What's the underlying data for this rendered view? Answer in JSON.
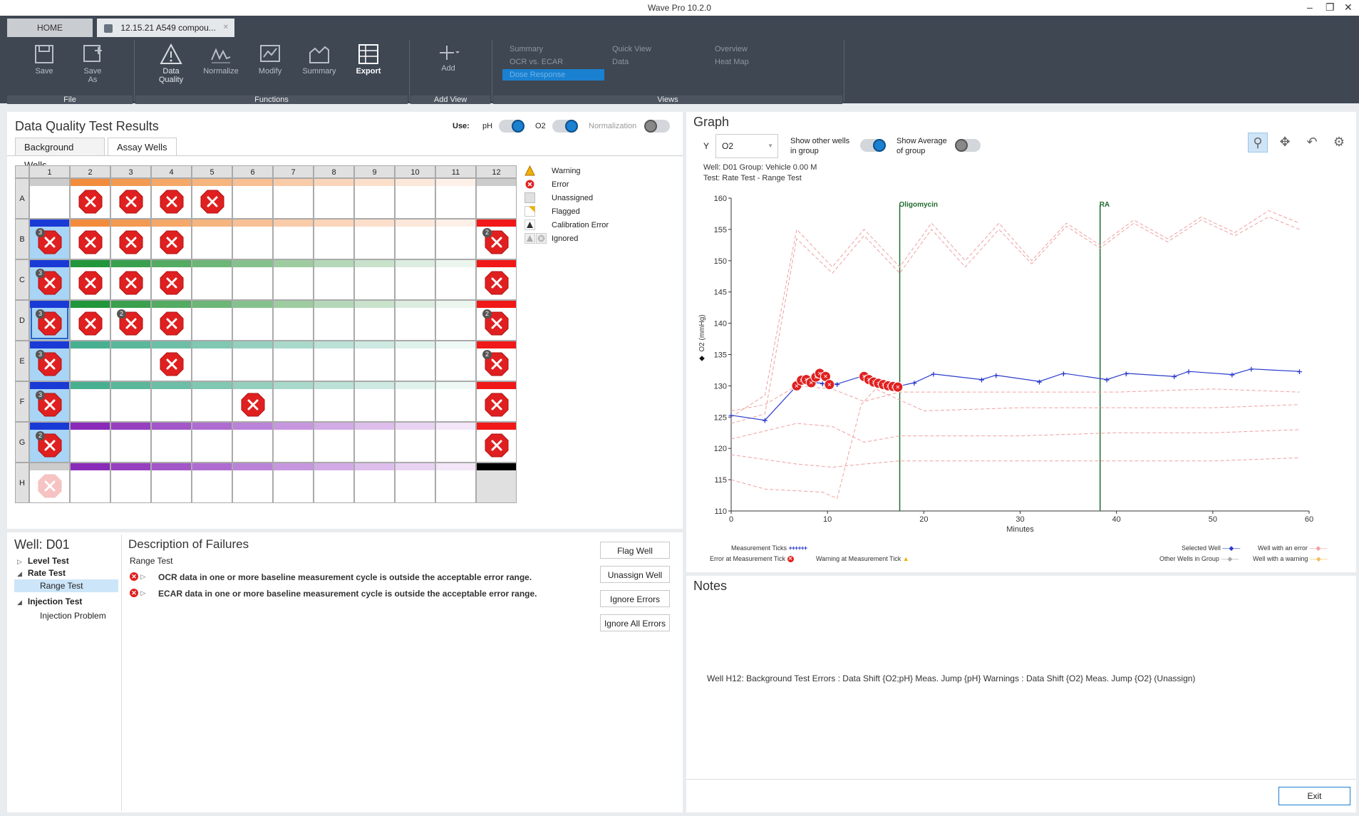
{
  "app": {
    "title": "Wave Pro 10.2.0"
  },
  "tabs": [
    {
      "label": "HOME"
    },
    {
      "label": "12.15.21 A549 compou..."
    }
  ],
  "ribbon": {
    "file": {
      "label": "File",
      "save": "Save",
      "save_as_1": "Save",
      "save_as_2": "As"
    },
    "functions": {
      "label": "Functions",
      "dq_1": "Data",
      "dq_2": "Quality",
      "normalize": "Normalize",
      "modify": "Modify",
      "summary": "Summary",
      "export": "Export"
    },
    "addview": {
      "label": "Add View",
      "add": "Add"
    },
    "views": {
      "label": "Views",
      "summary": "Summary",
      "ocr_ecar": "OCR vs. ECAR",
      "dose": "Dose Response",
      "quickview": "Quick View",
      "data": "Data",
      "overview": "Overview",
      "heatmap": "Heat Map"
    }
  },
  "dq": {
    "title": "Data Quality Test Results",
    "use_label": "Use:",
    "ph": "pH",
    "o2": "O2",
    "norm": "Normalization",
    "tab_bg": "Background Wells",
    "tab_assay": "Assay Wells",
    "cols": [
      "1",
      "2",
      "3",
      "4",
      "5",
      "6",
      "7",
      "8",
      "9",
      "10",
      "11",
      "12"
    ],
    "rows": [
      "A",
      "B",
      "C",
      "D",
      "E",
      "F",
      "G",
      "H"
    ],
    "legend": {
      "warning": "Warning",
      "error": "Error",
      "unassigned": "Unassigned",
      "flagged": "Flagged",
      "calib": "Calibration Error",
      "ignored": "Ignored"
    }
  },
  "well": {
    "title": "Well: D01",
    "tree": {
      "level": "Level Test",
      "rate": "Rate Test",
      "range": "Range Test",
      "injection": "Injection Test",
      "injection_problem": "Injection Problem"
    },
    "desc_title": "Description of Failures",
    "desc_sub": "Range Test",
    "failures": [
      "OCR data in one or more baseline measurement cycle is outside the acceptable error range.",
      "ECAR data in one or more baseline measurement cycle is outside the acceptable error range."
    ],
    "buttons": {
      "flag": "Flag Well",
      "unassign": "Unassign Well",
      "ignore": "Ignore Errors",
      "ignore_all": "Ignore All Errors"
    }
  },
  "graph": {
    "title": "Graph",
    "y_label": "Y",
    "y_value": "O2",
    "show_other_1": "Show other wells",
    "show_other_2": "in group",
    "show_avg_1": "Show Average",
    "show_avg_2": "of group",
    "info_1": "Well: D01   Group: Vehicle 0.00 M",
    "info_2": "Test: Rate Test - Range Test",
    "legend": {
      "meas_ticks": "Measurement Ticks",
      "err_tick": "Error at Measurement Tick",
      "warn_tick": "Warning at Measurement Tick",
      "selected": "Selected Well",
      "other": "Other Wells in Group",
      "with_error": "Well with an error",
      "with_warning": "Well with a warning"
    }
  },
  "chart_data": {
    "type": "line",
    "xlabel": "Minutes",
    "ylabel": "O2 (mmHg)",
    "xlim": [
      0,
      60
    ],
    "ylim": [
      110,
      160
    ],
    "xticks": [
      0,
      10,
      20,
      30,
      40,
      50,
      60
    ],
    "yticks": [
      110,
      115,
      120,
      125,
      130,
      135,
      140,
      145,
      150,
      155,
      160
    ],
    "annotations": [
      {
        "label": "Oligomycin",
        "x": 17.5
      },
      {
        "label": "RA",
        "x": 38.3
      }
    ],
    "series": [
      {
        "name": "Selected Well",
        "color": "#2a3bcc",
        "x": [
          0,
          3.5,
          6.8,
          8.2,
          9.5,
          11,
          13.5,
          15,
          17,
          19,
          21,
          26,
          27.5,
          32,
          34.5,
          39,
          41,
          46,
          47.5,
          52,
          54,
          59
        ],
        "y": [
          125.3,
          124.5,
          130.0,
          130.6,
          130.4,
          130.3,
          131.5,
          130.5,
          129.8,
          130.5,
          131.9,
          131.0,
          131.7,
          130.7,
          132.0,
          131.0,
          132.0,
          131.5,
          132.3,
          131.8,
          132.7,
          132.3
        ]
      },
      {
        "name": "",
        "color": "#f0a0a0",
        "dashed": true,
        "x": [
          0,
          3.5,
          6.8,
          10.5,
          13.8,
          17.5,
          20.8,
          24.3,
          27.8,
          31.2,
          34.8,
          38.3,
          41.8,
          45.3,
          48.8,
          52.3,
          55.8,
          59
        ],
        "y": [
          125,
          128.5,
          155,
          149,
          155,
          149,
          156,
          150,
          156,
          150,
          156,
          152.5,
          156.5,
          153.5,
          157,
          154.5,
          158,
          156
        ]
      },
      {
        "name": "",
        "color": "#f0a0a0",
        "dashed": true,
        "x": [
          0,
          3.5,
          6.8,
          10.5,
          13.8,
          17.5,
          20.8,
          24.3,
          27.8,
          31.2,
          34.8,
          38.3,
          41.8,
          45.3,
          48.8,
          52.3,
          55.8,
          59
        ],
        "y": [
          124,
          125.5,
          153.5,
          148,
          154,
          148,
          155,
          149,
          155,
          149.5,
          155.5,
          152,
          156,
          153,
          156.5,
          154,
          157,
          155
        ]
      },
      {
        "name": "",
        "color": "#f0a0a0",
        "dashed": true,
        "x": [
          0,
          3.5,
          6.8,
          10.5,
          13.8,
          17.5,
          30,
          40,
          50,
          59
        ],
        "y": [
          126,
          127,
          130,
          129.5,
          127.5,
          129,
          129,
          129,
          129.5,
          129
        ]
      },
      {
        "name": "",
        "color": "#f0a0a0",
        "dashed": true,
        "x": [
          0,
          6.8,
          10.5,
          13.8,
          17.5,
          30,
          40,
          50,
          59
        ],
        "y": [
          121.5,
          124,
          123.5,
          121,
          122,
          122,
          122.5,
          122.5,
          123
        ]
      },
      {
        "name": "",
        "color": "#f0a0a0",
        "dashed": true,
        "x": [
          0,
          6.8,
          10.5,
          13.8,
          17.5,
          30,
          40,
          50,
          59
        ],
        "y": [
          119,
          117.5,
          117,
          117.5,
          118,
          118,
          118,
          118,
          118.5
        ]
      },
      {
        "name": "",
        "color": "#f0a0a0",
        "dashed": true,
        "x": [
          0,
          3.5,
          9.5,
          11,
          13.5,
          15,
          20,
          30,
          40,
          50,
          59
        ],
        "y": [
          115,
          113.5,
          113,
          112,
          127,
          129.5,
          126,
          126.5,
          126.5,
          126.5,
          127
        ]
      }
    ],
    "error_points": {
      "x": [
        6.8,
        7.3,
        7.8,
        8.3,
        8.8,
        9.2,
        9.8,
        10.2,
        13.8,
        14.3,
        14.8,
        15.3,
        15.8,
        16.3,
        16.8,
        17.3
      ],
      "y": [
        130.0,
        130.9,
        131.0,
        130.5,
        131.4,
        132.0,
        131.5,
        130.2,
        131.5,
        131.0,
        130.6,
        130.4,
        130.2,
        130.0,
        129.9,
        129.8
      ]
    }
  },
  "notes": {
    "title": "Notes",
    "text": "Well H12: Background Test Errors : Data Shift {O2;pH} Meas. Jump {pH} Warnings : Data Shift {O2} Meas. Jump {O2}  (Unassign)"
  },
  "exit": "Exit"
}
